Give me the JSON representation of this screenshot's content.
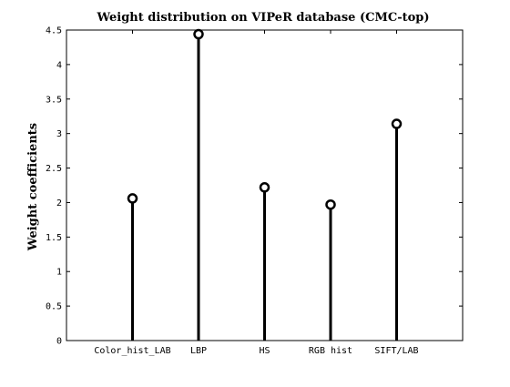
{
  "chart_data": {
    "type": "stem",
    "title": "Weight distribution on VIPeR database (CMC-top)",
    "xlabel": "",
    "ylabel": "Weight coefficients",
    "categories": [
      "Color_hist_LAB",
      "LBP",
      "HS",
      "RGB hist",
      "SIFT/LAB"
    ],
    "values": [
      2.06,
      4.44,
      2.22,
      1.97,
      3.14
    ],
    "ylim": [
      0,
      4.5
    ],
    "yticks": [
      "0",
      "0.5",
      "1",
      "1.5",
      "2",
      "2.5",
      "3",
      "3.5",
      "4",
      "4.5"
    ],
    "grid": false,
    "marker": "circle",
    "color": "#000000"
  }
}
